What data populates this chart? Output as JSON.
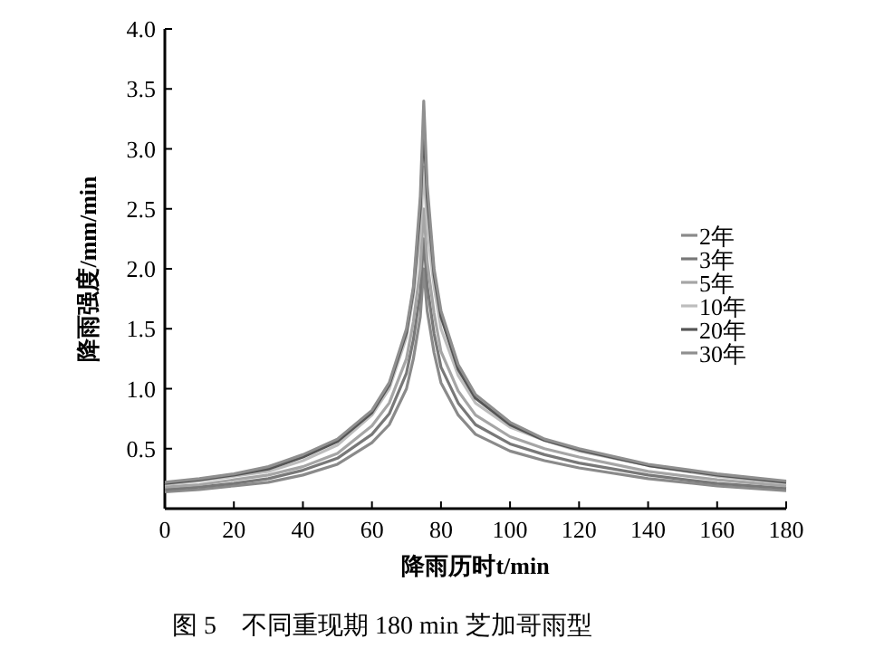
{
  "chart_data": {
    "type": "line",
    "xlabel": "降雨历时t/min",
    "ylabel": "降雨强度/mm/min",
    "annotations": [
      "图 5　不同重现期 180 min 芝加哥雨型"
    ],
    "x": [
      0,
      10,
      20,
      30,
      40,
      50,
      60,
      65,
      70,
      72,
      74,
      75,
      76,
      78,
      80,
      85,
      90,
      100,
      110,
      120,
      140,
      160,
      180
    ],
    "xlim": [
      0,
      180
    ],
    "xticks": [
      0,
      20,
      40,
      60,
      80,
      100,
      120,
      140,
      160,
      180
    ],
    "ylim": [
      0,
      4
    ],
    "yticks": [
      {
        "value": 0.5,
        "label": "0.5"
      },
      {
        "value": 1,
        "label": "1.0"
      },
      {
        "value": 1.5,
        "label": "1.5"
      },
      {
        "value": 2,
        "label": "2.0"
      },
      {
        "value": 2.5,
        "label": "2.5"
      },
      {
        "value": 3,
        "label": "3.0"
      },
      {
        "value": 3.5,
        "label": "3.5"
      },
      {
        "value": 4,
        "label": "4.0"
      }
    ],
    "legend": "right",
    "series": [
      {
        "name": "2年",
        "color": "#8a8a8a",
        "values": [
          0.14,
          0.16,
          0.19,
          0.22,
          0.28,
          0.37,
          0.55,
          0.7,
          1.0,
          1.25,
          1.6,
          2.0,
          1.65,
          1.3,
          1.05,
          0.78,
          0.62,
          0.48,
          0.4,
          0.34,
          0.25,
          0.19,
          0.15
        ]
      },
      {
        "name": "3年",
        "color": "#787878",
        "values": [
          0.16,
          0.18,
          0.21,
          0.25,
          0.32,
          0.42,
          0.62,
          0.79,
          1.13,
          1.41,
          1.8,
          2.25,
          1.86,
          1.46,
          1.18,
          0.88,
          0.7,
          0.54,
          0.45,
          0.38,
          0.28,
          0.21,
          0.17
        ]
      },
      {
        "name": "5年",
        "color": "#a5a5a5",
        "values": [
          0.18,
          0.2,
          0.24,
          0.28,
          0.35,
          0.46,
          0.69,
          0.88,
          1.25,
          1.56,
          2.0,
          2.5,
          2.06,
          1.63,
          1.31,
          0.98,
          0.78,
          0.6,
          0.5,
          0.43,
          0.31,
          0.24,
          0.19
        ]
      },
      {
        "name": "10年",
        "color": "#bdbdbd",
        "values": [
          0.2,
          0.23,
          0.27,
          0.31,
          0.4,
          0.53,
          0.78,
          1.0,
          1.43,
          1.78,
          2.28,
          2.85,
          2.35,
          1.85,
          1.5,
          1.11,
          0.88,
          0.68,
          0.57,
          0.48,
          0.36,
          0.27,
          0.21
        ]
      },
      {
        "name": "20年",
        "color": "#555555",
        "values": [
          0.21,
          0.24,
          0.28,
          0.33,
          0.43,
          0.56,
          0.8,
          1.03,
          1.47,
          1.82,
          2.5,
          3.2,
          2.6,
          1.95,
          1.6,
          1.16,
          0.92,
          0.7,
          0.57,
          0.49,
          0.36,
          0.28,
          0.22
        ]
      },
      {
        "name": "30年",
        "color": "#8f8f8f",
        "values": [
          0.22,
          0.25,
          0.29,
          0.35,
          0.45,
          0.58,
          0.82,
          1.05,
          1.5,
          1.85,
          2.6,
          3.4,
          2.7,
          2.0,
          1.65,
          1.2,
          0.95,
          0.72,
          0.58,
          0.5,
          0.37,
          0.29,
          0.23
        ]
      }
    ]
  }
}
